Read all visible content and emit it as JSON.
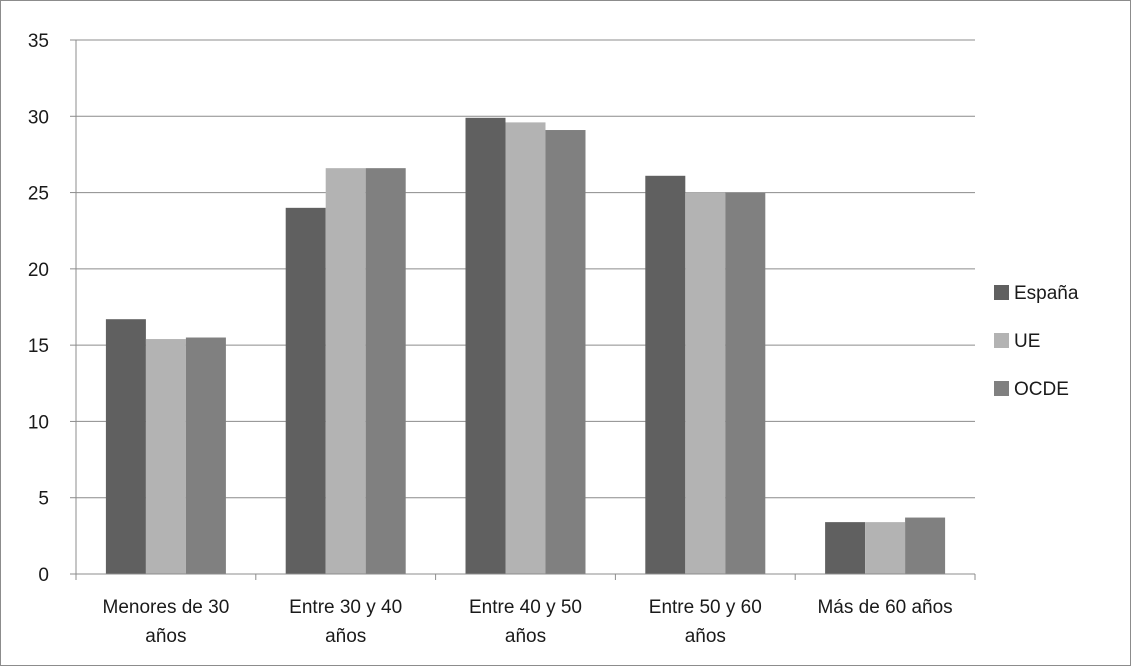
{
  "chart_data": {
    "type": "bar",
    "title": "",
    "xlabel": "",
    "ylabel": "",
    "ylim": [
      0,
      35
    ],
    "yticks": [
      0,
      5,
      10,
      15,
      20,
      25,
      30,
      35
    ],
    "grid": true,
    "legend_position": "right",
    "categories": [
      [
        "Menores de 30",
        "años"
      ],
      [
        "Entre 30 y 40",
        "años"
      ],
      [
        "Entre 40 y 50",
        "años"
      ],
      [
        "Entre 50 y 60",
        "años"
      ],
      [
        "Más de 60 años"
      ]
    ],
    "series": [
      {
        "name": "España",
        "color": "#606060",
        "values": [
          16.7,
          24.0,
          29.9,
          26.1,
          3.4
        ]
      },
      {
        "name": "UE",
        "color": "#b3b3b3",
        "values": [
          15.4,
          26.6,
          29.6,
          25.0,
          3.4
        ]
      },
      {
        "name": "OCDE",
        "color": "#808080",
        "values": [
          15.5,
          26.6,
          29.1,
          25.0,
          3.7
        ]
      }
    ]
  }
}
